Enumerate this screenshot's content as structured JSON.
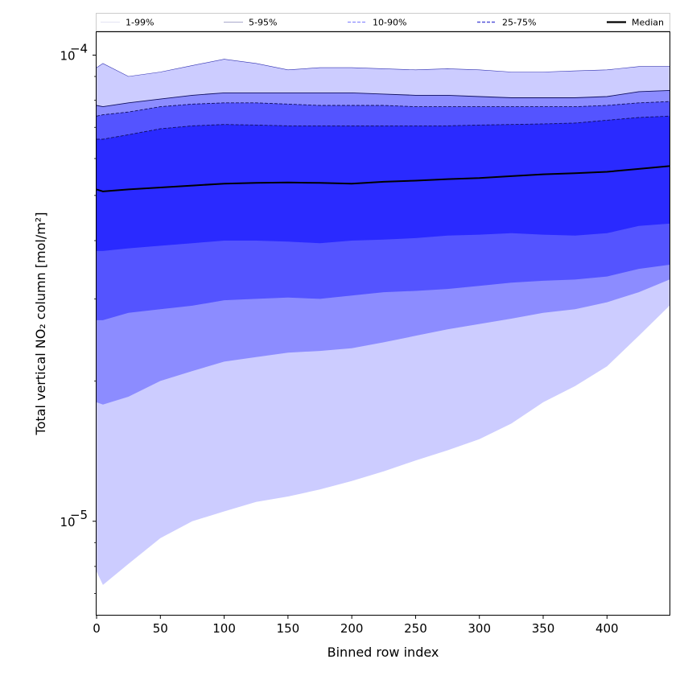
{
  "chart_data": {
    "type": "area",
    "title": "",
    "xlabel": "Binned row index",
    "ylabel": "Total vertical NO₂ column [mol/m²]",
    "xlim": [
      0,
      449
    ],
    "ylim": [
      6.3e-06,
      0.000112
    ],
    "y_scale": "log",
    "x_ticks": [
      0,
      50,
      100,
      150,
      200,
      250,
      300,
      350,
      400
    ],
    "y_ticks": [
      {
        "value": 1e-05,
        "base": "10",
        "exp": "−5"
      },
      {
        "value": 0.0001,
        "base": "10",
        "exp": "−4"
      }
    ],
    "legend": {
      "placement": "top",
      "entries": [
        {
          "label": "1-99%",
          "color": "#ccccff"
        },
        {
          "label": "5-95%",
          "color": "#8c8cff"
        },
        {
          "label": "10-90%",
          "color": "#5454ff"
        },
        {
          "label": "25-75%",
          "color": "#2a2aff"
        },
        {
          "label": "Median",
          "color": "#000000"
        }
      ]
    },
    "x": [
      0,
      5,
      25,
      50,
      75,
      100,
      125,
      150,
      175,
      200,
      225,
      250,
      275,
      300,
      325,
      350,
      375,
      400,
      425,
      449
    ],
    "series": [
      {
        "name": "1-99%",
        "color": "#ccccff",
        "lower": [
          7.8e-06,
          7.3e-06,
          8.1e-06,
          9.2e-06,
          1e-05,
          1.05e-05,
          1.1e-05,
          1.13e-05,
          1.17e-05,
          1.22e-05,
          1.28e-05,
          1.35e-05,
          1.42e-05,
          1.5e-05,
          1.62e-05,
          1.8e-05,
          1.95e-05,
          2.15e-05,
          2.5e-05,
          2.9e-05
        ],
        "upper": [
          9.4e-05,
          9.6e-05,
          9e-05,
          9.2e-05,
          9.5e-05,
          9.8e-05,
          9.6e-05,
          9.3e-05,
          9.4e-05,
          9.4e-05,
          9.35e-05,
          9.3e-05,
          9.35e-05,
          9.3e-05,
          9.2e-05,
          9.2e-05,
          9.25e-05,
          9.3e-05,
          9.45e-05,
          9.45e-05
        ]
      },
      {
        "name": "5-95%",
        "color": "#8c8cff",
        "lower": [
          1.8e-05,
          1.78e-05,
          1.85e-05,
          2e-05,
          2.1e-05,
          2.2e-05,
          2.25e-05,
          2.3e-05,
          2.32e-05,
          2.35e-05,
          2.42e-05,
          2.5e-05,
          2.58e-05,
          2.65e-05,
          2.72e-05,
          2.8e-05,
          2.85e-05,
          2.95e-05,
          3.1e-05,
          3.3e-05
        ],
        "upper": [
          7.8e-05,
          7.75e-05,
          7.9e-05,
          8.05e-05,
          8.2e-05,
          8.3e-05,
          8.3e-05,
          8.3e-05,
          8.3e-05,
          8.3e-05,
          8.25e-05,
          8.2e-05,
          8.2e-05,
          8.15e-05,
          8.1e-05,
          8.1e-05,
          8.1e-05,
          8.15e-05,
          8.35e-05,
          8.4e-05
        ]
      },
      {
        "name": "10-90%",
        "color": "#5454ff",
        "lower": [
          2.7e-05,
          2.7e-05,
          2.8e-05,
          2.85e-05,
          2.9e-05,
          2.98e-05,
          3e-05,
          3.02e-05,
          3e-05,
          3.05e-05,
          3.1e-05,
          3.12e-05,
          3.15e-05,
          3.2e-05,
          3.25e-05,
          3.28e-05,
          3.3e-05,
          3.35e-05,
          3.48e-05,
          3.55e-05
        ],
        "upper": [
          7.4e-05,
          7.45e-05,
          7.55e-05,
          7.75e-05,
          7.85e-05,
          7.9e-05,
          7.9e-05,
          7.85e-05,
          7.8e-05,
          7.8e-05,
          7.8e-05,
          7.75e-05,
          7.75e-05,
          7.75e-05,
          7.75e-05,
          7.75e-05,
          7.75e-05,
          7.8e-05,
          7.9e-05,
          7.95e-05
        ]
      },
      {
        "name": "25-75%",
        "color": "#2a2aff",
        "lower": [
          3.8e-05,
          3.8e-05,
          3.85e-05,
          3.9e-05,
          3.95e-05,
          4e-05,
          4e-05,
          3.98e-05,
          3.95e-05,
          4e-05,
          4.02e-05,
          4.05e-05,
          4.1e-05,
          4.12e-05,
          4.15e-05,
          4.12e-05,
          4.1e-05,
          4.15e-05,
          4.3e-05,
          4.35e-05
        ],
        "upper": [
          6.6e-05,
          6.6e-05,
          6.75e-05,
          6.95e-05,
          7.05e-05,
          7.1e-05,
          7.08e-05,
          7.05e-05,
          7.05e-05,
          7.05e-05,
          7.05e-05,
          7.05e-05,
          7.05e-05,
          7.08e-05,
          7.1e-05,
          7.12e-05,
          7.15e-05,
          7.25e-05,
          7.35e-05,
          7.4e-05
        ]
      },
      {
        "name": "Median",
        "color": "#000000",
        "values": [
          5.15e-05,
          5.1e-05,
          5.15e-05,
          5.2e-05,
          5.25e-05,
          5.3e-05,
          5.32e-05,
          5.33e-05,
          5.32e-05,
          5.3e-05,
          5.35e-05,
          5.38e-05,
          5.42e-05,
          5.45e-05,
          5.5e-05,
          5.55e-05,
          5.58e-05,
          5.62e-05,
          5.7e-05,
          5.78e-05
        ]
      }
    ]
  }
}
